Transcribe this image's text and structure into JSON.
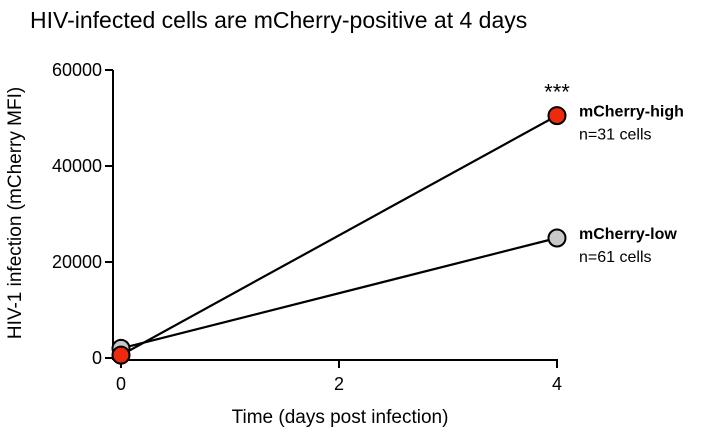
{
  "chart_data": {
    "type": "line",
    "title": "HIV-infected cells are mCherry-positive at 4 days",
    "xlabel": "Time (days post infection)",
    "ylabel": "HIV-1 infection (mCherry MFI)",
    "xlim": [
      0,
      4
    ],
    "ylim": [
      0,
      60000
    ],
    "x_ticks": [
      "0",
      "2",
      "4"
    ],
    "y_ticks": [
      "0",
      "20000",
      "40000",
      "60000"
    ],
    "grid": false,
    "annotation": "***",
    "series": [
      {
        "name": "mCherry-low",
        "count_label": "n=61 cells",
        "color": "#c8c8c8",
        "x": [
          0,
          4
        ],
        "values": [
          2000,
          25000
        ]
      },
      {
        "name": "mCherry-high",
        "count_label": "n=31 cells",
        "color": "#ee2a0e",
        "x": [
          0,
          4
        ],
        "values": [
          600,
          50500
        ]
      }
    ]
  }
}
